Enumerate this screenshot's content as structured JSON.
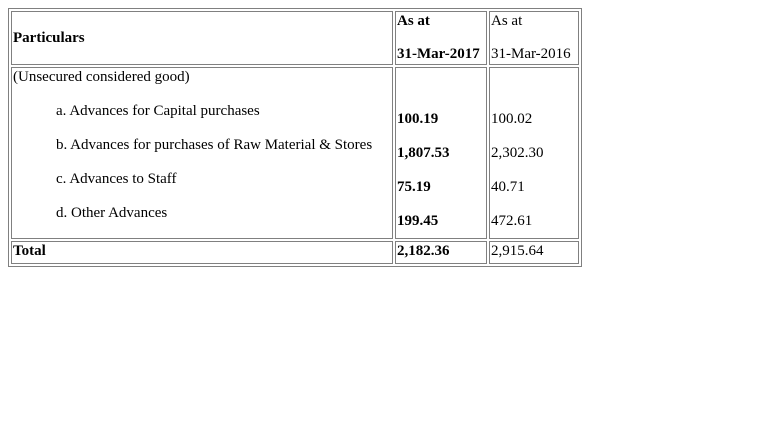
{
  "table": {
    "header": {
      "particulars": "Particulars",
      "col_2017_line1": "As at",
      "col_2017_line2": "31-Mar-2017",
      "col_2016_line1": "As at",
      "col_2016_line2": "31-Mar-2016"
    },
    "category": "(Unsecured considered good)",
    "items": [
      {
        "label": "a. Advances for Capital purchases",
        "v2017": "100.19",
        "v2016": "100.02"
      },
      {
        "label": "b. Advances for purchases of Raw Material & Stores",
        "v2017": "1,807.53",
        "v2016": "2,302.30"
      },
      {
        "label": "c. Advances to Staff",
        "v2017": "75.19",
        "v2016": "40.71"
      },
      {
        "label": "d. Other Advances",
        "v2017": "199.45",
        "v2016": "472.61"
      }
    ],
    "total": {
      "label": "Total",
      "v2017": "2,182.36",
      "v2016": "2,915.64"
    }
  }
}
